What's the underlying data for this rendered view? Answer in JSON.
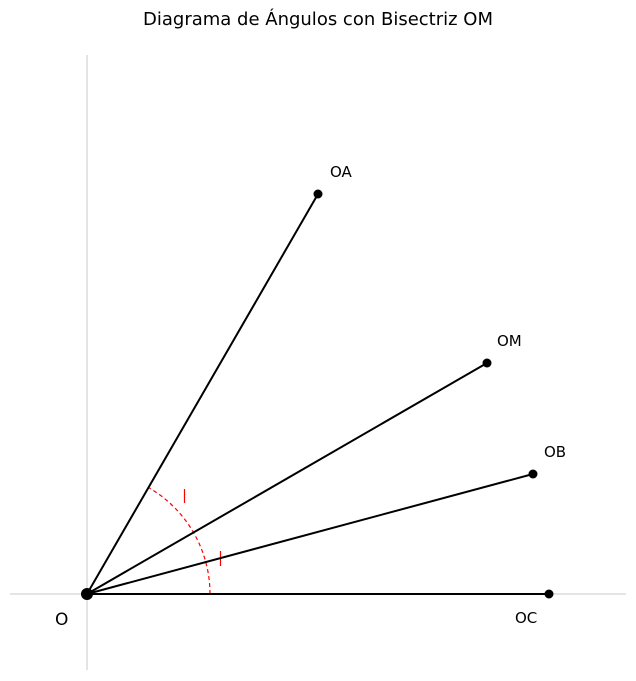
{
  "title": "Diagrama de Ángulos con Bisectriz OM",
  "origin_label": "O",
  "rays": [
    {
      "name": "oa",
      "label": "OA"
    },
    {
      "name": "om",
      "label": "OM"
    },
    {
      "name": "ob",
      "label": "OB"
    },
    {
      "name": "oc",
      "label": "OC"
    }
  ],
  "colors": {
    "rays": "#000000",
    "arc": "#ff0000",
    "axes": "#c8c8c8"
  }
}
